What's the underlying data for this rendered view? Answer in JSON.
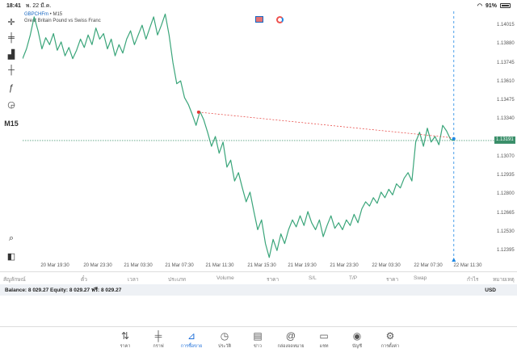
{
  "status_bar": {
    "time": "18:41",
    "date": "พ. 22 มี.ค.",
    "battery": "91%"
  },
  "symbol": {
    "name": "GBPCHFm",
    "timeframe": "M15",
    "description": "Great Britain Pound vs Swiss Franc"
  },
  "toolbar": {
    "tools": [
      "crosshair-icon",
      "candles-icon",
      "indicators-icon",
      "bars-icon",
      "function-icon",
      "objects-icon"
    ],
    "timeframe_label": "M15"
  },
  "price_axis": {
    "labels": [
      "1.14015",
      "1.13880",
      "1.13745",
      "1.13610",
      "1.13475",
      "1.13340",
      "1.13191",
      "1.13070",
      "1.12935",
      "1.12800",
      "1.12665",
      "1.12530",
      "1.12395"
    ],
    "current_price": "1.13191"
  },
  "time_axis": {
    "labels": [
      "20 Mar 19:30",
      "20 Mar 23:30",
      "21 Mar 03:30",
      "21 Mar 07:30",
      "21 Mar 11:30",
      "21 Mar 15:30",
      "21 Mar 19:30",
      "21 Mar 23:30",
      "22 Mar 03:30",
      "22 Mar 07:30",
      "22 Mar 11:30"
    ]
  },
  "chart_data": {
    "type": "line",
    "ylim": [
      1.1232,
      1.1412
    ],
    "price_labels": [
      "1.14015",
      "1.13880",
      "1.13745",
      "1.13610",
      "1.13475",
      "1.13340",
      "1.13191",
      "1.13070",
      "1.12935",
      "1.12800",
      "1.12665",
      "1.12530",
      "1.12395"
    ],
    "series": [
      {
        "values": [
          1.1378,
          1.1385,
          1.1395,
          1.1408,
          1.1398,
          1.1385,
          1.1393,
          1.1388,
          1.1396,
          1.1384,
          1.139,
          1.138,
          1.1386,
          1.1378,
          1.1384,
          1.1392,
          1.1386,
          1.1395,
          1.1388,
          1.14,
          1.1392,
          1.1396,
          1.1385,
          1.1392,
          1.138,
          1.1388,
          1.1382,
          1.1392,
          1.1398,
          1.1388,
          1.1395,
          1.1402,
          1.1392,
          1.14,
          1.1408,
          1.1395,
          1.1402,
          1.141,
          1.1395,
          1.1375,
          1.136,
          1.1362,
          1.135,
          1.1345,
          1.1338,
          1.133,
          1.134,
          1.1334,
          1.1325,
          1.1315,
          1.1322,
          1.131,
          1.1318,
          1.13,
          1.1305,
          1.129,
          1.1296,
          1.1285,
          1.1275,
          1.1282,
          1.1268,
          1.1255,
          1.1262,
          1.1245,
          1.1235,
          1.1248,
          1.124,
          1.1252,
          1.1245,
          1.1255,
          1.1262,
          1.1257,
          1.1265,
          1.1258,
          1.1268,
          1.126,
          1.1255,
          1.1262,
          1.125,
          1.1258,
          1.1265,
          1.1256,
          1.126,
          1.1255,
          1.1262,
          1.1258,
          1.1266,
          1.126,
          1.127,
          1.1275,
          1.1272,
          1.1278,
          1.1274,
          1.1282,
          1.1278,
          1.1284,
          1.128,
          1.1288,
          1.1285,
          1.1292,
          1.1296,
          1.129,
          1.1318,
          1.1325,
          1.1315,
          1.1328,
          1.1318,
          1.1322,
          1.1316,
          1.133,
          1.1326,
          1.132,
          1.1319
        ]
      }
    ],
    "trend_line": {
      "start": 1.13395,
      "end": 1.1321
    },
    "current_price": 1.13191
  },
  "trade_columns": [
    "สัญลักษณ์",
    "ตั๋ว",
    "เวลา",
    "ประเภท",
    "Volume",
    "ราคา",
    "S/L",
    "T/P",
    "ราคา",
    "Swap",
    "กำไร",
    "หมายเหตุ"
  ],
  "account": {
    "summary": "Balance: 8 029.27  Equity: 8 029.27  ฟรี: 8 029.27",
    "currency": "USD"
  },
  "tabs": [
    {
      "label": "ราคา",
      "icon": "arrows-icon"
    },
    {
      "label": "กราฟ",
      "icon": "chart-icon"
    },
    {
      "label": "การซื้อขาย",
      "icon": "trade-icon",
      "active": true
    },
    {
      "label": "ประวัติ",
      "icon": "history-icon"
    },
    {
      "label": "ข่าว",
      "icon": "news-icon"
    },
    {
      "label": "กล่องจดหมาย",
      "icon": "mail-icon"
    },
    {
      "label": "แชท",
      "icon": "chat-icon"
    },
    {
      "label": "บัญชี",
      "icon": "account-icon"
    },
    {
      "label": "การตั้งค่า",
      "icon": "settings-icon"
    }
  ],
  "colors": {
    "line": "#3aa57a",
    "accent": "#1e6fd9",
    "trend": "#e53935",
    "price_line": "#3a8f6a"
  }
}
